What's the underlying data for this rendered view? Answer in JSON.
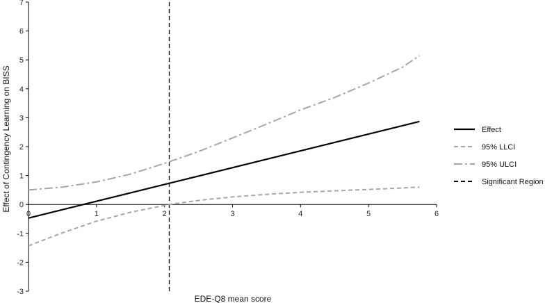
{
  "chart_data": {
    "type": "line",
    "xlabel": "EDE-Q8 mean score",
    "ylabel": "Effect of Contingency Learning on BISS",
    "xlim": [
      0,
      6
    ],
    "ylim": [
      -3,
      7
    ],
    "x_ticks": [
      "0",
      "1",
      "2",
      "3",
      "4",
      "5",
      "6"
    ],
    "y_ticks": [
      "-3",
      "-2",
      "-1",
      "0",
      "1",
      "2",
      "3",
      "4",
      "5",
      "6",
      "7"
    ],
    "grid": false,
    "legend_position": "right",
    "significant_region_x": 2.07,
    "series": [
      {
        "name": "Effect",
        "style": "solid",
        "color": "#000000",
        "points": [
          [
            0,
            -0.47
          ],
          [
            5.75,
            2.87
          ]
        ]
      },
      {
        "name": "95% LLCI",
        "style": "dashed",
        "color": "#a6a6a6",
        "points": [
          [
            0,
            -1.43
          ],
          [
            0.5,
            -0.98
          ],
          [
            1,
            -0.58
          ],
          [
            1.5,
            -0.27
          ],
          [
            2.07,
            0.0
          ],
          [
            2.5,
            0.14
          ],
          [
            3,
            0.26
          ],
          [
            3.5,
            0.35
          ],
          [
            4,
            0.42
          ],
          [
            4.5,
            0.47
          ],
          [
            5,
            0.52
          ],
          [
            5.5,
            0.57
          ],
          [
            5.75,
            0.6
          ]
        ]
      },
      {
        "name": "95% ULCI",
        "style": "dashdot",
        "color": "#a6a6a6",
        "points": [
          [
            0,
            0.5
          ],
          [
            0.5,
            0.6
          ],
          [
            1,
            0.78
          ],
          [
            1.5,
            1.05
          ],
          [
            2,
            1.42
          ],
          [
            2.5,
            1.83
          ],
          [
            3,
            2.3
          ],
          [
            3.5,
            2.78
          ],
          [
            4,
            3.27
          ],
          [
            4.5,
            3.7
          ],
          [
            5,
            4.2
          ],
          [
            5.5,
            4.75
          ],
          [
            5.75,
            5.15
          ]
        ]
      },
      {
        "name": "Significant Region",
        "style": "dashed",
        "color": "#000000",
        "points": [
          [
            2.07,
            -3
          ],
          [
            2.07,
            7
          ]
        ]
      }
    ]
  }
}
